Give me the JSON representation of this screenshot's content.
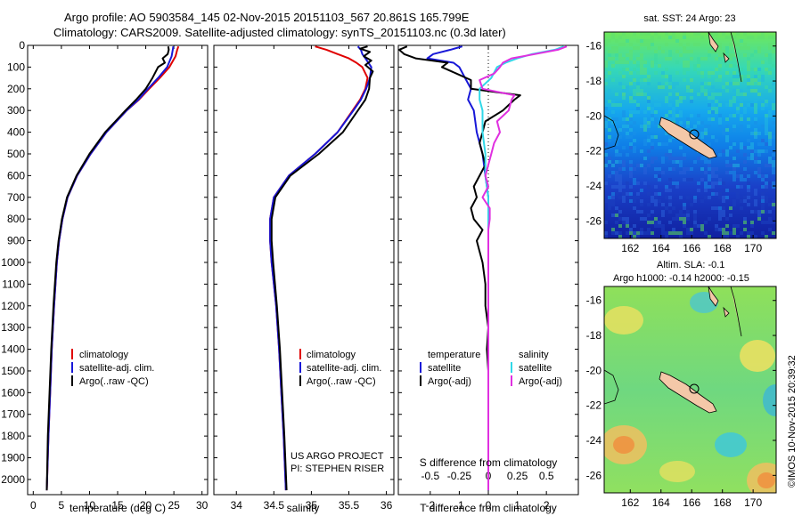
{
  "header": {
    "line1": "Argo profile: AO 5903584_145 02-Nov-2015 20151103_567 20.861S 165.799E",
    "line2": "Climatology: CARS2009. Satellite-adjusted climatology: synTS_20151103.nc (0.3d later)"
  },
  "colors": {
    "climatology": "#e00000",
    "satellite": "#1818d8",
    "argo": "#000000",
    "salinity_satellite": "#30d8e8",
    "salinity_argo": "#e030e0"
  },
  "chart_data": [
    {
      "id": "temperature",
      "type": "line",
      "xlabel": "temperature (deg C)",
      "ylabel": "",
      "xlim": [
        -1,
        31
      ],
      "ylim": [
        2070,
        0
      ],
      "xticks": [
        "0",
        "5",
        "10",
        "15",
        "20",
        "25",
        "30"
      ],
      "yticks": [
        "0",
        "100",
        "200",
        "300",
        "400",
        "500",
        "600",
        "700",
        "800",
        "900",
        "1000",
        "1100",
        "1200",
        "1300",
        "1400",
        "1500",
        "1600",
        "1700",
        "1800",
        "1900",
        "2000"
      ],
      "legend": [
        "climatology",
        "satellite-adj. clim.",
        "Argo(..raw -QC)"
      ],
      "series": [
        {
          "name": "climatology",
          "color": "#e00000",
          "depth": [
            5,
            20,
            50,
            100,
            150,
            200,
            250,
            300,
            400,
            500,
            600,
            700,
            800,
            900,
            1000,
            1200,
            1400,
            1600,
            1800,
            2050
          ],
          "values": [
            25.8,
            25.6,
            25.3,
            24.2,
            22.5,
            20.6,
            18.8,
            16.6,
            13.0,
            10.2,
            7.8,
            6.1,
            5.2,
            4.6,
            4.2,
            3.7,
            3.3,
            3.0,
            2.7,
            2.4
          ]
        },
        {
          "name": "satellite-adj. clim.",
          "color": "#1818d8",
          "depth": [
            5,
            20,
            50,
            100,
            150,
            200,
            250,
            300,
            400,
            500,
            600,
            700,
            800,
            900,
            1000,
            1200,
            1400,
            1600,
            1800,
            2050
          ],
          "values": [
            24.9,
            24.8,
            24.6,
            23.8,
            22.2,
            20.4,
            18.7,
            16.6,
            13.0,
            10.2,
            7.8,
            6.1,
            5.2,
            4.6,
            4.2,
            3.7,
            3.3,
            3.0,
            2.7,
            2.4
          ]
        },
        {
          "name": "Argo(..raw -QC)",
          "color": "#000000",
          "depth": [
            5,
            20,
            40,
            60,
            80,
            100,
            150,
            200,
            250,
            300,
            400,
            500,
            600,
            700,
            800,
            900,
            1000,
            1200,
            1400,
            1600,
            1800,
            2050
          ],
          "values": [
            24.0,
            24.1,
            23.9,
            23.0,
            23.4,
            22.2,
            21.2,
            20.0,
            18.3,
            16.4,
            12.8,
            10.0,
            7.7,
            6.0,
            5.1,
            4.5,
            4.1,
            3.6,
            3.2,
            2.9,
            2.6,
            2.4
          ]
        }
      ]
    },
    {
      "id": "salinity",
      "type": "line",
      "xlabel": "salinity",
      "ylabel": "",
      "xlim": [
        33.7,
        36.1
      ],
      "ylim": [
        2070,
        0
      ],
      "xticks": [
        "34",
        "34.5",
        "35",
        "35.5",
        "36"
      ],
      "legend": [
        "climatology",
        "satellite-adj. clim.",
        "Argo(..raw -QC)"
      ],
      "annotations": [
        "US ARGO PROJECT",
        "PI: STEPHEN RISER"
      ],
      "series": [
        {
          "name": "climatology",
          "color": "#e00000",
          "depth": [
            5,
            20,
            40,
            60,
            80,
            100,
            150,
            200,
            250,
            300,
            400,
            500,
            600,
            700,
            800,
            900,
            1000,
            1200,
            1400,
            1600,
            1800,
            2050
          ],
          "values": [
            35.05,
            35.2,
            35.35,
            35.5,
            35.6,
            35.68,
            35.75,
            35.72,
            35.65,
            35.55,
            35.35,
            35.05,
            34.7,
            34.5,
            34.45,
            34.45,
            34.47,
            34.53,
            34.57,
            34.6,
            34.63,
            34.66
          ]
        },
        {
          "name": "satellite-adj. clim.",
          "color": "#1818d8",
          "depth": [
            5,
            20,
            40,
            60,
            80,
            100,
            150,
            200,
            250,
            300,
            400,
            500,
            600,
            700,
            800,
            900,
            1000,
            1200,
            1400,
            1600,
            1800,
            2050
          ],
          "values": [
            35.62,
            35.66,
            35.68,
            35.72,
            35.76,
            35.8,
            35.78,
            35.73,
            35.66,
            35.56,
            35.35,
            35.05,
            34.7,
            34.5,
            34.45,
            34.45,
            34.47,
            34.53,
            34.57,
            34.6,
            34.63,
            34.66
          ]
        },
        {
          "name": "Argo(..raw -QC)",
          "color": "#000000",
          "depth": [
            5,
            15,
            30,
            50,
            70,
            90,
            120,
            150,
            200,
            250,
            300,
            400,
            500,
            600,
            700,
            800,
            900,
            1000,
            1200,
            1400,
            1600,
            1800,
            2050
          ],
          "values": [
            35.75,
            35.65,
            35.78,
            35.7,
            35.8,
            35.72,
            35.82,
            35.78,
            35.77,
            35.72,
            35.62,
            35.42,
            35.1,
            34.72,
            34.52,
            34.47,
            34.47,
            34.49,
            34.54,
            34.58,
            34.61,
            34.64,
            34.67
          ]
        }
      ]
    },
    {
      "id": "differences",
      "type": "line",
      "xlabel": "T difference from climatology",
      "xlabel_top": "S difference from climatology",
      "ylabel": "",
      "xlim": [
        -3.1,
        3.1
      ],
      "ylim": [
        2070,
        0
      ],
      "xticks": [
        "-2",
        "-1",
        "0",
        "1",
        "2"
      ],
      "sticks": [
        "-0.5",
        "-0.25",
        "0",
        "0.25",
        "0.5"
      ],
      "legend_titles": [
        "temperature",
        "salinity"
      ],
      "legend": [
        "satellite",
        "Argo(-adj)",
        "satellite",
        "Argo(-adj)"
      ],
      "series": [
        {
          "name": "satellite",
          "group": "temperature",
          "color": "#1818d8",
          "depth": [
            5,
            20,
            40,
            60,
            80,
            100,
            150,
            200,
            250,
            300,
            400,
            500,
            600,
            700,
            800,
            900,
            1000,
            1200,
            1400,
            1600,
            1800,
            2050
          ],
          "values": [
            -0.9,
            -1.3,
            -1.9,
            -2.1,
            -1.2,
            -1.0,
            -0.8,
            -0.6,
            -0.7,
            -0.5,
            -0.4,
            -0.2,
            -0.1,
            0.0,
            0.0,
            0.0,
            0.0,
            0.0,
            0.0,
            0.0,
            0.0,
            0.0
          ]
        },
        {
          "name": "Argo(-adj)",
          "group": "temperature",
          "color": "#000000",
          "depth": [
            5,
            20,
            40,
            60,
            80,
            100,
            130,
            160,
            200,
            230,
            250,
            300,
            350,
            400,
            450,
            500,
            550,
            600,
            650,
            700,
            750,
            800,
            850,
            900,
            950,
            1000,
            1100,
            1200,
            1300,
            1400,
            1500,
            1600,
            1800,
            2050
          ],
          "values": [
            -2.8,
            -3.1,
            -2.9,
            -2.5,
            -1.4,
            -1.6,
            -1.1,
            -0.6,
            -0.6,
            1.1,
            0.9,
            0.5,
            -0.1,
            -0.2,
            -0.3,
            -0.2,
            -0.1,
            -0.3,
            -0.5,
            -0.4,
            -0.6,
            -0.5,
            -0.2,
            -0.4,
            -0.3,
            -0.2,
            -0.1,
            -0.1,
            0.0,
            -0.05,
            0.0,
            0.0,
            0.0,
            0.0
          ]
        },
        {
          "name": "satellite",
          "group": "salinity",
          "color": "#30d8e8",
          "depth": [
            5,
            20,
            40,
            60,
            80,
            100,
            150,
            200,
            250,
            300,
            400,
            500,
            600,
            700,
            800,
            900,
            1000,
            1200,
            1400,
            1600,
            1800,
            2050
          ],
          "values": [
            2.6,
            2.3,
            1.5,
            1.0,
            0.6,
            0.3,
            0.1,
            -0.3,
            -0.3,
            -0.2,
            -0.2,
            -0.1,
            -0.1,
            0.0,
            0.0,
            0.0,
            0.0,
            0.0,
            0.0,
            0.0,
            0.0,
            0.0
          ]
        },
        {
          "name": "Argo(-adj)",
          "group": "salinity",
          "color": "#e030e0",
          "depth": [
            5,
            20,
            40,
            60,
            80,
            100,
            130,
            160,
            200,
            230,
            250,
            300,
            350,
            400,
            450,
            500,
            550,
            600,
            650,
            700,
            750,
            800,
            850,
            900,
            1000,
            1100,
            1200,
            1400,
            1600,
            1800,
            2050
          ],
          "values": [
            2.7,
            2.4,
            1.6,
            0.8,
            0.5,
            0.4,
            0.2,
            -0.3,
            -0.2,
            0.9,
            0.8,
            0.7,
            0.3,
            0.4,
            0.2,
            0.1,
            0.0,
            -0.1,
            0.0,
            -0.2,
            0.05,
            0.05,
            0.0,
            0.0,
            0.0,
            0.0,
            0.0,
            0.0,
            0.0,
            0.0,
            0.0
          ]
        }
      ]
    },
    {
      "id": "sst_map",
      "type": "heatmap",
      "title": "sat. SST: 24 Argo: 23",
      "xticks": [
        "162",
        "164",
        "166",
        "168",
        "170"
      ],
      "yticks": [
        "-16",
        "-18",
        "-20",
        "-22",
        "-24",
        "-26"
      ]
    },
    {
      "id": "sla_map",
      "type": "heatmap",
      "title_line1": "Altim. SLA: -0.1",
      "title_line2": "Argo h1000: -0.14 h2000: -0.15",
      "xticks": [
        "162",
        "164",
        "166",
        "168",
        "170"
      ],
      "yticks": [
        "-16",
        "-18",
        "-20",
        "-22",
        "-24",
        "-26"
      ]
    }
  ],
  "credit": "©IMOS 10-Nov-2015 20:39:32"
}
